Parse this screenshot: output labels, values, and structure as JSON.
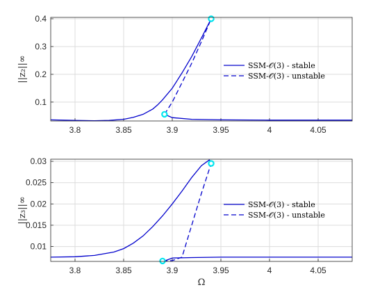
{
  "chart_data": [
    {
      "type": "line",
      "ylabel": "||z₂||∞",
      "xlabel": "",
      "xlim": [
        3.775,
        4.085
      ],
      "ylim": [
        0.032,
        0.405
      ],
      "xticks": [
        3.8,
        3.85,
        3.9,
        3.95,
        4,
        4.05
      ],
      "xticklabels": [
        "3.8",
        "3.85",
        "3.9",
        "3.95",
        "4",
        "4.05"
      ],
      "yticks": [
        0.1,
        0.2,
        0.3,
        0.4
      ],
      "yticklabels": [
        "0.1",
        "0.2",
        "0.3",
        "0.4"
      ],
      "grid": true,
      "legend_position": "right",
      "series": [
        {
          "name": "SSM-𝒪(3) - stable",
          "style": "solid",
          "color": "#0000cc",
          "x": [
            3.775,
            3.8,
            3.82,
            3.835,
            3.85,
            3.86,
            3.87,
            3.88,
            3.885,
            3.89,
            3.9,
            3.91,
            3.92,
            3.93,
            3.94
          ],
          "y": [
            0.036,
            0.034,
            0.033,
            0.034,
            0.038,
            0.045,
            0.056,
            0.075,
            0.09,
            0.108,
            0.15,
            0.205,
            0.264,
            0.331,
            0.4
          ]
        },
        {
          "name": "",
          "style": "solid",
          "color": "#0000cc",
          "x": [
            3.892,
            3.9,
            3.92,
            3.95,
            4.0,
            4.05,
            4.085
          ],
          "y": [
            0.056,
            0.044,
            0.038,
            0.036,
            0.035,
            0.035,
            0.035
          ]
        },
        {
          "name": "SSM-𝒪(3) - unstable",
          "style": "dashed",
          "color": "#0000cc",
          "x": [
            3.892,
            3.9,
            3.91,
            3.92,
            3.93,
            3.94
          ],
          "y": [
            0.056,
            0.1,
            0.17,
            0.24,
            0.318,
            0.4
          ]
        }
      ],
      "markers": [
        {
          "x": 3.94,
          "y": 0.4,
          "color": "#00e5ee"
        },
        {
          "x": 3.892,
          "y": 0.056,
          "color": "#00e5ee"
        }
      ],
      "legend": [
        "SSM-𝒪(3) - stable",
        "SSM-𝒪(3) - unstable"
      ]
    },
    {
      "type": "line",
      "ylabel": "||z₃||∞",
      "xlabel": "Ω",
      "xlim": [
        3.775,
        4.085
      ],
      "ylim": [
        0.0065,
        0.0305
      ],
      "xticks": [
        3.8,
        3.85,
        3.9,
        3.95,
        4,
        4.05
      ],
      "xticklabels": [
        "3.8",
        "3.85",
        "3.9",
        "3.95",
        "4",
        "4.05"
      ],
      "yticks": [
        0.01,
        0.015,
        0.02,
        0.025,
        0.03
      ],
      "yticklabels": [
        "0.01",
        "0.015",
        "0.02",
        "0.025",
        "0.03"
      ],
      "grid": true,
      "legend_position": "right",
      "series": [
        {
          "name": "SSM-𝒪(3) - stable",
          "style": "solid",
          "color": "#0000cc",
          "x": [
            3.775,
            3.8,
            3.82,
            3.84,
            3.85,
            3.86,
            3.87,
            3.88,
            3.89,
            3.9,
            3.91,
            3.92,
            3.93,
            3.938,
            3.942
          ],
          "y": [
            0.0075,
            0.0076,
            0.0079,
            0.0087,
            0.0095,
            0.0108,
            0.0125,
            0.0147,
            0.0172,
            0.02,
            0.023,
            0.0262,
            0.029,
            0.0303,
            0.0297
          ]
        },
        {
          "name": "",
          "style": "solid",
          "color": "#0000cc",
          "x": [
            3.892,
            3.9,
            3.92,
            3.95,
            4.0,
            4.05,
            4.085
          ],
          "y": [
            0.0066,
            0.0073,
            0.0074,
            0.0075,
            0.0075,
            0.0075,
            0.0075
          ]
        },
        {
          "name": "SSM-𝒪(3) - unstable",
          "style": "dashed",
          "color": "#0000cc",
          "x": [
            3.89,
            3.9,
            3.91,
            3.92,
            3.93,
            3.94
          ],
          "y": [
            0.0066,
            0.0067,
            0.0075,
            0.015,
            0.0225,
            0.0295
          ]
        }
      ],
      "markers": [
        {
          "x": 3.94,
          "y": 0.0295,
          "color": "#00e5ee"
        },
        {
          "x": 3.89,
          "y": 0.0066,
          "color": "#00e5ee"
        }
      ],
      "legend": [
        "SSM-𝒪(3) - stable",
        "SSM-𝒪(3) - unstable"
      ]
    }
  ]
}
